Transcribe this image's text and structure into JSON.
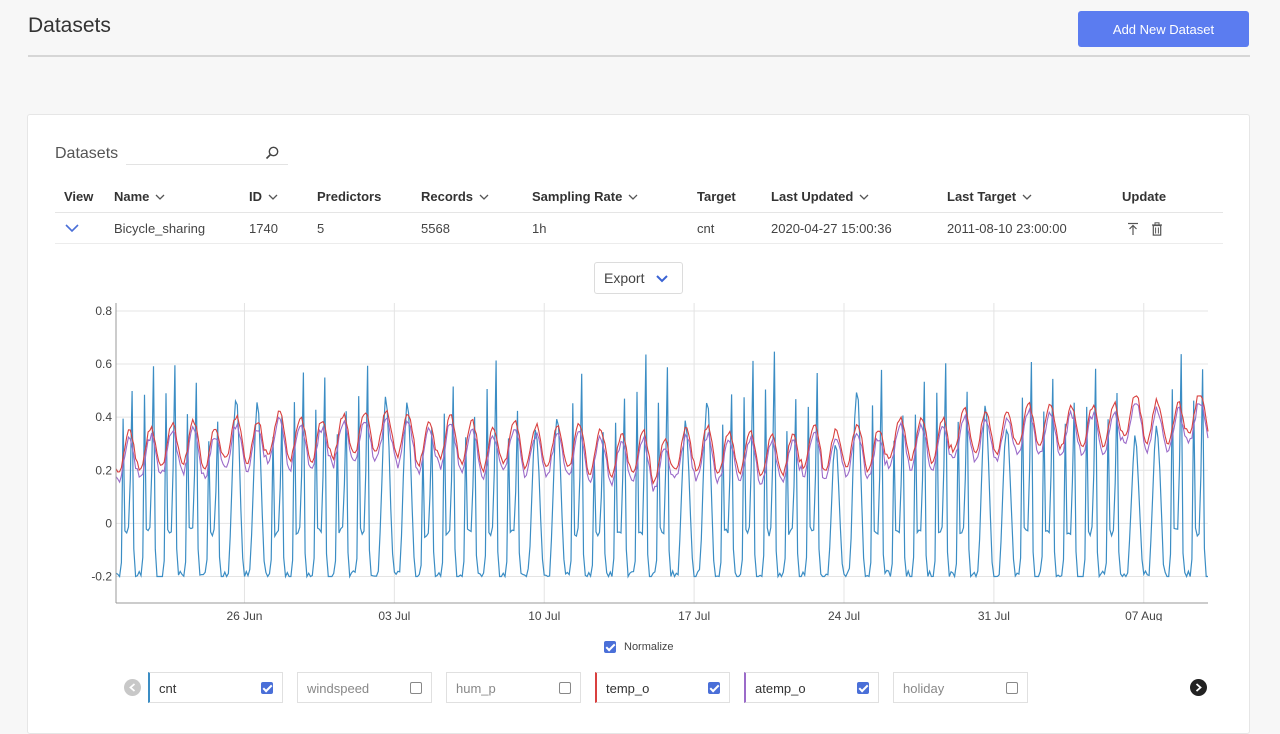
{
  "page": {
    "title": "Datasets",
    "add_button": "Add New Dataset"
  },
  "card": {
    "search_label": "Datasets",
    "search_icon": "search-icon",
    "columns": [
      "View",
      "Name",
      "ID",
      "Predictors",
      "Records",
      "Sampling Rate",
      "Target",
      "Last Updated",
      "Last Target",
      "Update"
    ],
    "row": {
      "name": "Bicycle_sharing",
      "id": "1740",
      "predictors": "5",
      "records": "5568",
      "sampling_rate": "1h",
      "target": "cnt",
      "last_updated": "2020-04-27 15:00:36",
      "last_target": "2011-08-10 23:00:00"
    },
    "export_label": "Export",
    "normalize_label": "Normalize",
    "series_chips": [
      {
        "name": "cnt",
        "checked": true,
        "color": "#3b8dc4"
      },
      {
        "name": "windspeed",
        "checked": false,
        "color": ""
      },
      {
        "name": "hum_p",
        "checked": false,
        "color": ""
      },
      {
        "name": "temp_o",
        "checked": true,
        "color": "#d9403f"
      },
      {
        "name": "atemp_o",
        "checked": true,
        "color": "#9b6bc9"
      },
      {
        "name": "holiday",
        "checked": false,
        "color": ""
      }
    ]
  },
  "chart_data": {
    "type": "line",
    "x_tick_labels": [
      "26 Jun",
      "03 Jul",
      "10 Jul",
      "17 Jul",
      "24 Jul",
      "31 Jul",
      "07 Aug"
    ],
    "y_tick_labels": [
      "-0.2",
      "0",
      "0.2",
      "0.4",
      "0.6",
      "0.8"
    ],
    "ylim": [
      -0.3,
      0.83
    ],
    "x_range": [
      "2011-06-20",
      "2011-08-10"
    ],
    "grid": true,
    "series": [
      {
        "key": "cnt",
        "color": "#3b8dc4",
        "min": -0.2,
        "peak_typical": 0.55,
        "peak_max": 0.72
      },
      {
        "key": "temp_o",
        "color": "#d9403f",
        "min": 0.15,
        "max": 0.48
      },
      {
        "key": "atemp_o",
        "color": "#9b6bc9",
        "min": 0.12,
        "max": 0.45
      }
    ]
  }
}
